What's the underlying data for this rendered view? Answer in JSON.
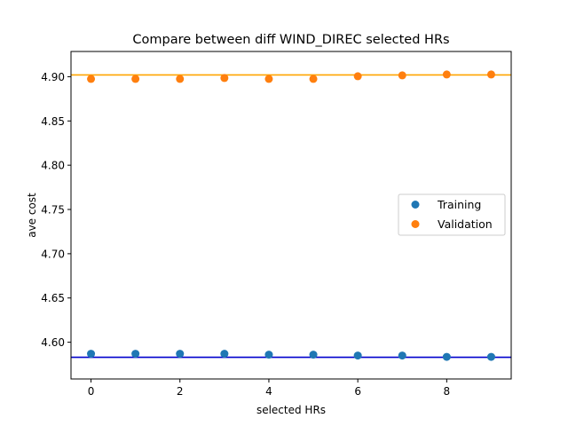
{
  "chart_data": {
    "type": "scatter",
    "title": "Compare between diff WIND_DIREC selected HRs",
    "xlabel": "selected HRs",
    "ylabel": "ave cost",
    "xlim": [
      -0.45,
      9.45
    ],
    "ylim": [
      4.5585,
      4.9285
    ],
    "x_ticks": [
      0,
      2,
      4,
      6,
      8
    ],
    "y_ticks": [
      4.6,
      4.65,
      4.7,
      4.75,
      4.8,
      4.85,
      4.9
    ],
    "x_tick_labels": [
      "0",
      "2",
      "4",
      "6",
      "8"
    ],
    "y_tick_labels": [
      "4.60",
      "4.65",
      "4.70",
      "4.75",
      "4.80",
      "4.85",
      "4.90"
    ],
    "grid": false,
    "legend_position": "center-right",
    "series": [
      {
        "name": "Training",
        "color": "#1f77b4",
        "x": [
          0,
          1,
          2,
          3,
          4,
          5,
          6,
          7,
          8,
          9
        ],
        "y": [
          4.587,
          4.587,
          4.587,
          4.587,
          4.586,
          4.586,
          4.585,
          4.585,
          4.5835,
          4.5835
        ]
      },
      {
        "name": "Validation",
        "color": "#ff7f0e",
        "x": [
          0,
          1,
          2,
          3,
          4,
          5,
          6,
          7,
          8,
          9
        ],
        "y": [
          4.8975,
          4.8975,
          4.8975,
          4.8985,
          4.8975,
          4.8975,
          4.9005,
          4.9015,
          4.9025,
          4.9025
        ]
      }
    ],
    "reference_lines": [
      {
        "orientation": "horizontal",
        "y": 4.583,
        "color": "#0000cd"
      },
      {
        "orientation": "horizontal",
        "y": 4.902,
        "color": "#ffa500"
      }
    ]
  }
}
